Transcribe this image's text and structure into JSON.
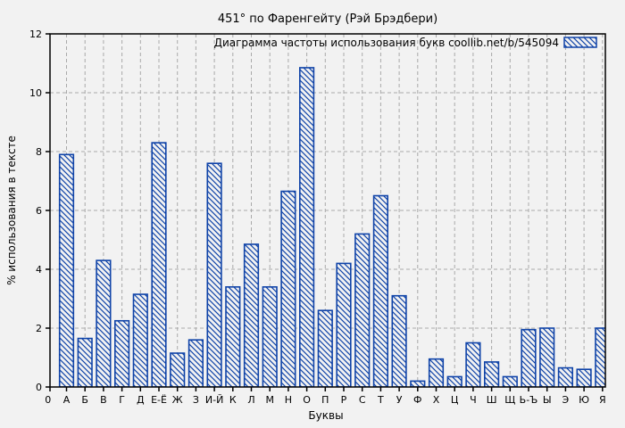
{
  "chart_data": {
    "type": "bar",
    "title": "451° по Фаренгейту (Рэй Брэдбери)",
    "legend": "Диаграмма частоты использования букв  coollib.net/b/545094",
    "legend_position": "top-right-inside",
    "xlabel": "Буквы",
    "ylabel": "% использования в тексте",
    "x_first_tick": "0",
    "categories": [
      "А",
      "Б",
      "В",
      "Г",
      "Д",
      "Е-Ё",
      "Ж",
      "З",
      "И-Й",
      "К",
      "Л",
      "М",
      "Н",
      "О",
      "П",
      "Р",
      "С",
      "Т",
      "У",
      "Ф",
      "Х",
      "Ц",
      "Ч",
      "Ш",
      "Щ",
      "Ь-Ъ",
      "Ы",
      "Э",
      "Ю",
      "Я"
    ],
    "values": [
      7.9,
      1.65,
      4.3,
      2.25,
      3.15,
      8.3,
      1.15,
      1.6,
      7.6,
      3.4,
      4.85,
      3.4,
      6.65,
      10.85,
      2.6,
      4.2,
      5.2,
      6.5,
      3.1,
      0.2,
      0.95,
      0.35,
      1.5,
      0.85,
      0.35,
      1.95,
      2.0,
      0.65,
      0.6,
      2.0
    ],
    "ylim": [
      0,
      12
    ],
    "yticks": [
      0,
      2,
      4,
      6,
      8,
      10,
      12
    ],
    "grid": true,
    "bar_style": "diagonal-hatch",
    "colors": {
      "bar": "#0f43a8",
      "grid": "#a9a9a9",
      "background": "#f2f2f2",
      "border": "#000000",
      "text": "#000000"
    }
  }
}
